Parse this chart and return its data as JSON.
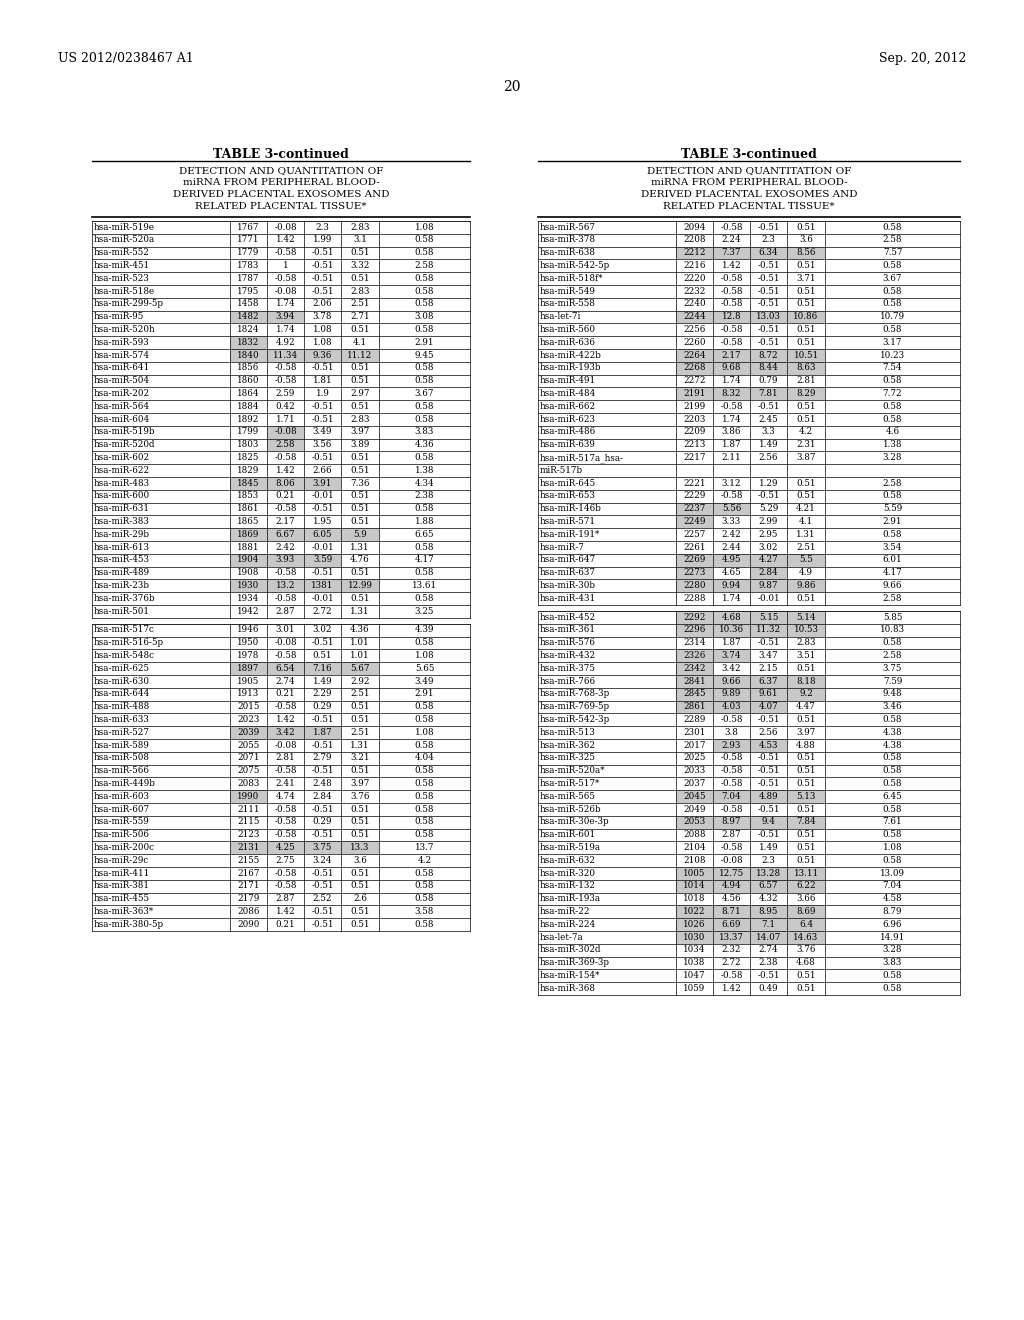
{
  "header_left": "US 2012/0238467 A1",
  "header_right": "Sep. 20, 2012",
  "page_number": "20",
  "table_title": "TABLE 3-continued",
  "table_subtitle_lines": [
    "DETECTION AND QUANTITATION OF",
    "miRNA FROM PERIPHERAL BLOOD-",
    "DERIVED PLACENTAL EXOSOMES AND",
    "RELATED PLACENTAL TISSUE*"
  ],
  "left_g1": [
    [
      "hsa-miR-519e",
      "1767",
      "-0.08",
      "2.3",
      "2.83",
      "1.08"
    ],
    [
      "hsa-miR-520a",
      "1771",
      "1.42",
      "1.99",
      "3.1",
      "0.58"
    ],
    [
      "hsa-miR-552",
      "1779",
      "-0.58",
      "-0.51",
      "0.51",
      "0.58"
    ],
    [
      "hsa-miR-451",
      "1783",
      "1",
      "-0.51",
      "3.32",
      "2.58"
    ],
    [
      "hsa-miR-523",
      "1787",
      "-0.58",
      "-0.51",
      "0.51",
      "0.58"
    ],
    [
      "hsa-miR-518e",
      "1795",
      "-0.08",
      "-0.51",
      "2.83",
      "0.58"
    ],
    [
      "hsa-miR-299-5p",
      "1458",
      "1.74",
      "2.06",
      "2.51",
      "0.58"
    ],
    [
      "hsa-miR-95",
      "1482",
      "3.94",
      "3.78",
      "2.71",
      "3.08"
    ],
    [
      "hsa-miR-520h",
      "1824",
      "1.74",
      "1.08",
      "0.51",
      "0.58"
    ],
    [
      "hsa-miR-593",
      "1832",
      "4.92",
      "1.08",
      "4.1",
      "2.91"
    ],
    [
      "hsa-miR-574",
      "1840",
      "11.34",
      "9.36",
      "11.12",
      "9.45"
    ],
    [
      "hsa-miR-641",
      "1856",
      "-0.58",
      "-0.51",
      "0.51",
      "0.58"
    ],
    [
      "hsa-miR-504",
      "1860",
      "-0.58",
      "1.81",
      "0.51",
      "0.58"
    ],
    [
      "hsa-miR-202",
      "1864",
      "2.59",
      "1.9",
      "2.97",
      "3.67"
    ],
    [
      "hsa-miR-564",
      "1884",
      "0.42",
      "-0.51",
      "0.51",
      "0.58"
    ],
    [
      "hsa-miR-604",
      "1892",
      "1.71",
      "-0.51",
      "2.83",
      "0.58"
    ],
    [
      "hsa-miR-519b",
      "1799",
      "-0.08",
      "3.49",
      "3.97",
      "3.83"
    ],
    [
      "hsa-miR-520d",
      "1803",
      "2.58",
      "3.56",
      "3.89",
      "4.36"
    ],
    [
      "hsa-miR-602",
      "1825",
      "-0.58",
      "-0.51",
      "0.51",
      "0.58"
    ],
    [
      "hsa-miR-622",
      "1829",
      "1.42",
      "2.66",
      "0.51",
      "1.38"
    ],
    [
      "hsa-miR-483",
      "1845",
      "8.06",
      "3.91",
      "7.36",
      "4.34"
    ],
    [
      "hsa-miR-600",
      "1853",
      "0.21",
      "-0.01",
      "0.51",
      "2.38"
    ],
    [
      "hsa-miR-631",
      "1861",
      "-0.58",
      "-0.51",
      "0.51",
      "0.58"
    ],
    [
      "hsa-miR-383",
      "1865",
      "2.17",
      "1.95",
      "0.51",
      "1.88"
    ],
    [
      "hsa-miR-29b",
      "1869",
      "6.67",
      "6.05",
      "5.9",
      "6.65"
    ],
    [
      "hsa-miR-613",
      "1881",
      "2.42",
      "-0.01",
      "1.31",
      "0.58"
    ],
    [
      "hsa-miR-453",
      "1904",
      "3.93",
      "3.59",
      "4.76",
      "4.17"
    ],
    [
      "hsa-miR-489",
      "1908",
      "-0.58",
      "-0.51",
      "0.51",
      "0.58"
    ],
    [
      "hsa-miR-23b",
      "1930",
      "13.2",
      "1381",
      "12.99",
      "13.61"
    ],
    [
      "hsa-miR-376b",
      "1934",
      "-0.58",
      "-0.01",
      "0.51",
      "0.58"
    ],
    [
      "hsa-miR-501",
      "1942",
      "2.87",
      "2.72",
      "1.31",
      "3.25"
    ]
  ],
  "left_g1_shade": {
    "7": [
      2,
      3
    ],
    "9": [
      2
    ],
    "10": [
      2,
      3,
      4,
      5
    ],
    "16": [
      3
    ],
    "17": [
      3
    ],
    "20": [
      2,
      3,
      4
    ],
    "24": [
      2,
      3,
      4,
      5
    ],
    "26": [
      2,
      3,
      4
    ],
    "28": [
      2,
      3,
      4,
      5
    ]
  },
  "left_g2": [
    [
      "hsa-miR-517c",
      "1946",
      "3.01",
      "3.02",
      "4.36",
      "4.39"
    ],
    [
      "hsa-miR-516-5p",
      "1950",
      "-0.08",
      "-0.51",
      "1.01",
      "0.58"
    ],
    [
      "hsa-miR-548c",
      "1978",
      "-0.58",
      "0.51",
      "1.01",
      "1.08"
    ],
    [
      "hsa-miR-625",
      "1897",
      "6.54",
      "7.16",
      "5.67",
      "5.65"
    ],
    [
      "hsa-miR-630",
      "1905",
      "2.74",
      "1.49",
      "2.92",
      "3.49"
    ],
    [
      "hsa-miR-644",
      "1913",
      "0.21",
      "2.29",
      "2.51",
      "2.91"
    ],
    [
      "hsa-miR-488",
      "2015",
      "-0.58",
      "0.29",
      "0.51",
      "0.58"
    ],
    [
      "hsa-miR-633",
      "2023",
      "1.42",
      "-0.51",
      "0.51",
      "0.58"
    ],
    [
      "hsa-miR-527",
      "2039",
      "3.42",
      "1.87",
      "2.51",
      "1.08"
    ],
    [
      "hsa-miR-589",
      "2055",
      "-0.08",
      "-0.51",
      "1.31",
      "0.58"
    ],
    [
      "hsa-miR-508",
      "2071",
      "2.81",
      "2.79",
      "3.21",
      "4.04"
    ],
    [
      "hsa-miR-566",
      "2075",
      "-0.58",
      "-0.51",
      "0.51",
      "0.58"
    ],
    [
      "hsa-miR-449b",
      "2083",
      "2.41",
      "2.48",
      "3.97",
      "0.58"
    ],
    [
      "hsa-miR-603",
      "1990",
      "4.74",
      "2.84",
      "3.76",
      "0.58"
    ],
    [
      "hsa-miR-607",
      "2111",
      "-0.58",
      "-0.51",
      "0.51",
      "0.58"
    ],
    [
      "hsa-miR-559",
      "2115",
      "-0.58",
      "0.29",
      "0.51",
      "0.58"
    ],
    [
      "hsa-miR-506",
      "2123",
      "-0.58",
      "-0.51",
      "0.51",
      "0.58"
    ],
    [
      "hsa-miR-200c",
      "2131",
      "4.25",
      "3.75",
      "13.3",
      "13.7"
    ],
    [
      "hsa-miR-29c",
      "2155",
      "2.75",
      "3.24",
      "3.6",
      "4.2"
    ],
    [
      "hsa-miR-411",
      "2167",
      "-0.58",
      "-0.51",
      "0.51",
      "0.58"
    ],
    [
      "hsa-miR-381",
      "2171",
      "-0.58",
      "-0.51",
      "0.51",
      "0.58"
    ],
    [
      "hsa-miR-455",
      "2179",
      "2.87",
      "2.52",
      "2.6",
      "0.58"
    ],
    [
      "hsa-miR-363*",
      "2086",
      "1.42",
      "-0.51",
      "0.51",
      "3.58"
    ],
    [
      "hsa-miR-380-5p",
      "2090",
      "0.21",
      "-0.51",
      "0.51",
      "0.58"
    ]
  ],
  "left_g2_shade": {
    "3": [
      2,
      3,
      4,
      5
    ],
    "8": [
      2,
      3,
      4
    ],
    "13": [
      2
    ],
    "17": [
      2,
      3,
      4,
      5
    ]
  },
  "right_g1": [
    [
      "hsa-miR-567",
      "2094",
      "-0.58",
      "-0.51",
      "0.51",
      "0.58"
    ],
    [
      "hsa-miR-378",
      "2208",
      "2.24",
      "2.3",
      "3.6",
      "2.58"
    ],
    [
      "hsa-miR-638",
      "2212",
      "7.37",
      "6.34",
      "8.56",
      "7.57"
    ],
    [
      "hsa-miR-542-5p",
      "2216",
      "1.42",
      "-0.51",
      "0.51",
      "0.58"
    ],
    [
      "hsa-miR-518f*",
      "2220",
      "-0.58",
      "-0.51",
      "3.71",
      "3.67"
    ],
    [
      "hsa-miR-549",
      "2232",
      "-0.58",
      "-0.51",
      "0.51",
      "0.58"
    ],
    [
      "hsa-miR-558",
      "2240",
      "-0.58",
      "-0.51",
      "0.51",
      "0.58"
    ],
    [
      "hsa-let-7i",
      "2244",
      "12.8",
      "13.03",
      "10.86",
      "10.79"
    ],
    [
      "hsa-miR-560",
      "2256",
      "-0.58",
      "-0.51",
      "0.51",
      "0.58"
    ],
    [
      "hsa-miR-636",
      "2260",
      "-0.58",
      "-0.51",
      "0.51",
      "3.17"
    ],
    [
      "hsa-miR-422b",
      "2264",
      "2.17",
      "8.72",
      "10.51",
      "10.23"
    ],
    [
      "hsa-miR-193b",
      "2268",
      "9.68",
      "8.44",
      "8.63",
      "7.54"
    ],
    [
      "hsa-miR-491",
      "2272",
      "1.74",
      "0.79",
      "2.81",
      "0.58"
    ],
    [
      "hsa-miR-484",
      "2191",
      "8.32",
      "7.81",
      "8.29",
      "7.72"
    ],
    [
      "hsa-miR-662",
      "2199",
      "-0.58",
      "-0.51",
      "0.51",
      "0.58"
    ],
    [
      "hsa-miR-623",
      "2203",
      "1.74",
      "2.45",
      "0.51",
      "0.58"
    ],
    [
      "hsa-miR-486",
      "2209",
      "3.86",
      "3.3",
      "4.2",
      "4.6"
    ],
    [
      "hsa-miR-639",
      "2213",
      "1.87",
      "1.49",
      "2.31",
      "1.38"
    ],
    [
      "hsa-miR-517a_hsa-",
      "2217",
      "2.11",
      "2.56",
      "3.87",
      "3.28"
    ],
    [
      "miR-517b",
      "",
      "",
      "",
      "",
      ""
    ],
    [
      "hsa-miR-645",
      "2221",
      "3.12",
      "1.29",
      "0.51",
      "2.58"
    ],
    [
      "hsa-miR-653",
      "2229",
      "-0.58",
      "-0.51",
      "0.51",
      "0.58"
    ],
    [
      "hsa-miR-146b",
      "2237",
      "5.56",
      "5.29",
      "4.21",
      "5.59"
    ],
    [
      "hsa-miR-571",
      "2249",
      "3.33",
      "2.99",
      "4.1",
      "2.91"
    ],
    [
      "hsa-miR-191*",
      "2257",
      "2.42",
      "2.95",
      "1.31",
      "0.58"
    ],
    [
      "hsa-miR-7",
      "2261",
      "2.44",
      "3.02",
      "2.51",
      "3.54"
    ],
    [
      "hsa-miR-647",
      "2269",
      "4.95",
      "4.27",
      "5.5",
      "6.01"
    ],
    [
      "hsa-miR-637",
      "2273",
      "4.65",
      "2.84",
      "4.9",
      "4.17"
    ],
    [
      "hsa-miR-30b",
      "2280",
      "9.94",
      "9.87",
      "9.86",
      "9.66"
    ],
    [
      "hsa-miR-431",
      "2288",
      "1.74",
      "-0.01",
      "0.51",
      "2.58"
    ]
  ],
  "right_g1_shade": {
    "2": [
      2,
      3,
      4,
      5
    ],
    "7": [
      2,
      3,
      4,
      5
    ],
    "10": [
      2,
      3,
      4,
      5
    ],
    "11": [
      2,
      3,
      4,
      5
    ],
    "13": [
      2,
      3,
      4,
      5
    ],
    "22": [
      2,
      3
    ],
    "23": [
      2
    ],
    "26": [
      2,
      3,
      4,
      5
    ],
    "27": [
      2,
      4
    ],
    "28": [
      2,
      3,
      4,
      5
    ]
  },
  "right_g2": [
    [
      "hsa-miR-452",
      "2292",
      "4.68",
      "5.15",
      "5.14",
      "5.85"
    ],
    [
      "hsa-miR-361",
      "2296",
      "10.36",
      "11.32",
      "10.53",
      "10.83"
    ],
    [
      "hsa-miR-576",
      "2314",
      "1.87",
      "-0.51",
      "2.83",
      "0.58"
    ],
    [
      "hsa-miR-432",
      "2326",
      "3.74",
      "3.47",
      "3.51",
      "2.58"
    ],
    [
      "hsa-miR-375",
      "2342",
      "3.42",
      "2.15",
      "0.51",
      "3.75"
    ],
    [
      "hsa-miR-766",
      "2841",
      "9.66",
      "6.37",
      "8.18",
      "7.59"
    ],
    [
      "hsa-miR-768-3p",
      "2845",
      "9.89",
      "9.61",
      "9.2",
      "9.48"
    ],
    [
      "hsa-miR-769-5p",
      "2861",
      "4.03",
      "4.07",
      "4.47",
      "3.46"
    ],
    [
      "hsa-miR-542-3p",
      "2289",
      "-0.58",
      "-0.51",
      "0.51",
      "0.58"
    ],
    [
      "hsa-miR-513",
      "2301",
      "3.8",
      "2.56",
      "3.97",
      "4.38"
    ],
    [
      "hsa-miR-362",
      "2017",
      "2.93",
      "4.53",
      "4.88",
      "4.38"
    ],
    [
      "hsa-miR-325",
      "2025",
      "-0.58",
      "-0.51",
      "0.51",
      "0.58"
    ],
    [
      "hsa-miR-520a*",
      "2033",
      "-0.58",
      "-0.51",
      "0.51",
      "0.58"
    ],
    [
      "hsa-miR-517*",
      "2037",
      "-0.58",
      "-0.51",
      "0.51",
      "0.58"
    ],
    [
      "hsa-miR-565",
      "2045",
      "7.04",
      "4.89",
      "5.13",
      "6.45"
    ],
    [
      "hsa-miR-526b",
      "2049",
      "-0.58",
      "-0.51",
      "0.51",
      "0.58"
    ],
    [
      "hsa-miR-30e-3p",
      "2053",
      "8.97",
      "9.4",
      "7.84",
      "7.61"
    ],
    [
      "hsa-miR-601",
      "2088",
      "2.87",
      "-0.51",
      "0.51",
      "0.58"
    ],
    [
      "hsa-miR-519a",
      "2104",
      "-0.58",
      "1.49",
      "0.51",
      "1.08"
    ],
    [
      "hsa-miR-632",
      "2108",
      "-0.08",
      "2.3",
      "0.51",
      "0.58"
    ],
    [
      "hsa-miR-320",
      "1005",
      "12.75",
      "13.28",
      "13.11",
      "13.09"
    ],
    [
      "hsa-miR-132",
      "1014",
      "4.94",
      "6.57",
      "6.22",
      "7.04"
    ],
    [
      "hsa-miR-193a",
      "1018",
      "4.56",
      "4.32",
      "3.66",
      "4.58"
    ],
    [
      "hsa-miR-22",
      "1022",
      "8.71",
      "8.95",
      "8.69",
      "8.79"
    ],
    [
      "hsa-miR-224",
      "1026",
      "6.69",
      "7.1",
      "6.4",
      "6.96"
    ],
    [
      "hsa-let-7a",
      "1030",
      "13.37",
      "14.07",
      "14.63",
      "14.91"
    ],
    [
      "hsa-miR-302d",
      "1034",
      "2.32",
      "2.74",
      "3.76",
      "3.28"
    ],
    [
      "hsa-miR-369-3p",
      "1038",
      "2.72",
      "2.38",
      "4.68",
      "3.83"
    ],
    [
      "hsa-miR-154*",
      "1047",
      "-0.58",
      "-0.51",
      "0.51",
      "0.58"
    ],
    [
      "hsa-miR-368",
      "1059",
      "1.42",
      "0.49",
      "0.51",
      "0.58"
    ]
  ],
  "right_g2_shade": {
    "0": [
      2,
      3,
      4,
      5
    ],
    "1": [
      2,
      3,
      4,
      5
    ],
    "3": [
      2,
      3
    ],
    "4": [
      2
    ],
    "5": [
      2,
      3,
      4,
      5
    ],
    "6": [
      2,
      3,
      4,
      5
    ],
    "7": [
      2,
      3,
      4
    ],
    "10": [
      3,
      4
    ],
    "14": [
      2,
      3,
      4,
      5
    ],
    "16": [
      2,
      3,
      4,
      5
    ],
    "20": [
      2,
      3,
      4,
      5
    ],
    "21": [
      2,
      3,
      4,
      5
    ],
    "23": [
      2,
      3,
      4,
      5
    ],
    "24": [
      2,
      3,
      4,
      5
    ],
    "25": [
      2,
      3,
      4,
      5
    ]
  }
}
